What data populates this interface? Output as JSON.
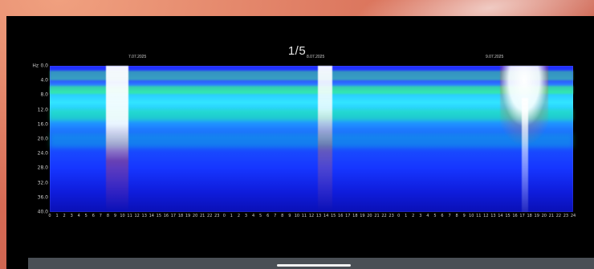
{
  "viewer": {
    "page_counter": "1/5",
    "dates": [
      "7.07.2025",
      "8.07.2025",
      "9.07.2025"
    ],
    "y_unit": "Hz",
    "y_ticks": [
      "0.0",
      "4.0",
      "8.0",
      "12.0",
      "16.0",
      "20.0",
      "24.0",
      "28.0",
      "32.0",
      "36.0",
      "40.0"
    ],
    "x_ticks": [
      "0",
      "1",
      "2",
      "3",
      "4",
      "5",
      "6",
      "7",
      "8",
      "9",
      "10",
      "11",
      "12",
      "13",
      "14",
      "15",
      "16",
      "17",
      "18",
      "19",
      "20",
      "21",
      "22",
      "23",
      "0",
      "1",
      "2",
      "3",
      "4",
      "5",
      "6",
      "7",
      "8",
      "9",
      "10",
      "11",
      "12",
      "13",
      "14",
      "15",
      "16",
      "17",
      "18",
      "19",
      "20",
      "21",
      "22",
      "23",
      "0",
      "1",
      "2",
      "3",
      "4",
      "5",
      "6",
      "7",
      "8",
      "9",
      "10",
      "11",
      "12",
      "13",
      "14",
      "15",
      "16",
      "17",
      "18",
      "19",
      "20",
      "21",
      "22",
      "23",
      "24"
    ]
  }
}
